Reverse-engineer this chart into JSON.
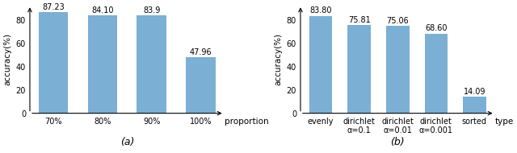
{
  "chart_a": {
    "categories": [
      "70%",
      "80%",
      "90%",
      "100%"
    ],
    "values": [
      87.23,
      84.1,
      83.9,
      47.96
    ],
    "value_labels": [
      "87.23",
      "84.10",
      "83.9",
      "47.96"
    ],
    "xlabel": "proportion",
    "ylabel": "accuracy(%)",
    "bar_color": "#7bafd4",
    "ylim": [
      0,
      93
    ],
    "yticks": [
      0,
      20,
      40,
      60,
      80
    ],
    "label": "(a)"
  },
  "chart_b": {
    "categories": [
      "evenly",
      "dirichlet\nα=0.1",
      "dirichlet\nα=0.01",
      "dirichlet\nα=0.001",
      "sorted"
    ],
    "values": [
      83.8,
      75.81,
      75.06,
      68.6,
      14.09
    ],
    "value_labels": [
      "83.80",
      "75.81",
      "75.06",
      "68.60",
      "14.09"
    ],
    "xlabel": "type",
    "ylabel": "accuracy(%)",
    "bar_color": "#7bafd4",
    "ylim": [
      0,
      93
    ],
    "yticks": [
      0,
      20,
      40,
      60,
      80
    ],
    "label": "(b)"
  },
  "value_fontsize": 7.0,
  "axis_label_fontsize": 7.5,
  "tick_fontsize": 7.0,
  "caption_fontsize": 9,
  "ylabel_fontsize": 7.5
}
